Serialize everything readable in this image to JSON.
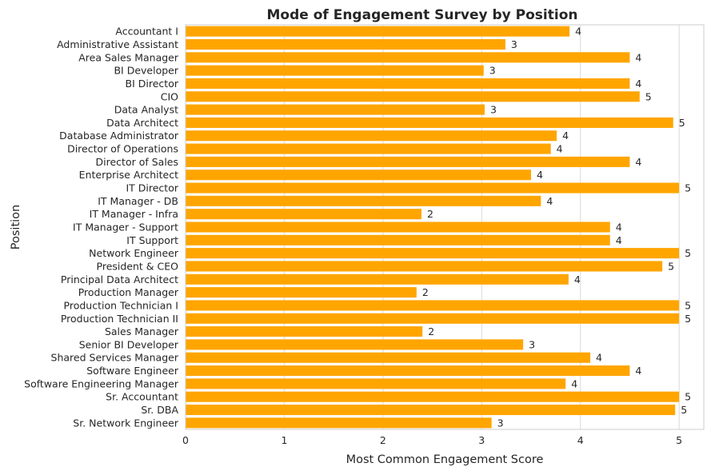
{
  "chart_data": {
    "type": "bar",
    "orientation": "horizontal",
    "title": "Mode of Engagement Survey by Position",
    "xlabel": "Most Common Engagement Score",
    "ylabel": "Position",
    "xlim": [
      0,
      5.25
    ],
    "xticks": [
      0,
      1,
      2,
      3,
      4,
      5
    ],
    "grid": true,
    "bar_color": "#ffa500",
    "categories": [
      "Accountant I",
      "Administrative Assistant",
      "Area Sales Manager",
      "BI Developer",
      "BI Director",
      "CIO",
      "Data Analyst",
      "Data Architect",
      "Database Administrator",
      "Director of Operations",
      "Director of Sales",
      "Enterprise Architect",
      "IT Director",
      "IT Manager - DB",
      "IT Manager - Infra",
      "IT Manager - Support",
      "IT Support",
      "Network Engineer",
      "President & CEO",
      "Principal Data Architect",
      "Production Manager",
      "Production Technician I",
      "Production Technician II",
      "Sales Manager",
      "Senior BI Developer",
      "Shared Services Manager",
      "Software Engineer",
      "Software Engineering Manager",
      "Sr. Accountant",
      "Sr. DBA",
      "Sr. Network Engineer"
    ],
    "values": [
      3.89,
      3.24,
      4.5,
      3.02,
      4.5,
      4.6,
      3.03,
      4.94,
      3.76,
      3.7,
      4.5,
      3.5,
      5.0,
      3.6,
      2.39,
      4.3,
      4.3,
      5.0,
      4.83,
      3.88,
      2.34,
      5.0,
      5.0,
      2.4,
      3.42,
      4.1,
      4.5,
      3.85,
      5.0,
      4.96,
      3.1
    ],
    "data_labels": [
      "4",
      "3",
      "4",
      "3",
      "4",
      "5",
      "3",
      "5",
      "4",
      "4",
      "4",
      "4",
      "5",
      "4",
      "2",
      "4",
      "4",
      "5",
      "5",
      "4",
      "2",
      "5",
      "5",
      "2",
      "3",
      "4",
      "4",
      "4",
      "5",
      "5",
      "3"
    ]
  }
}
